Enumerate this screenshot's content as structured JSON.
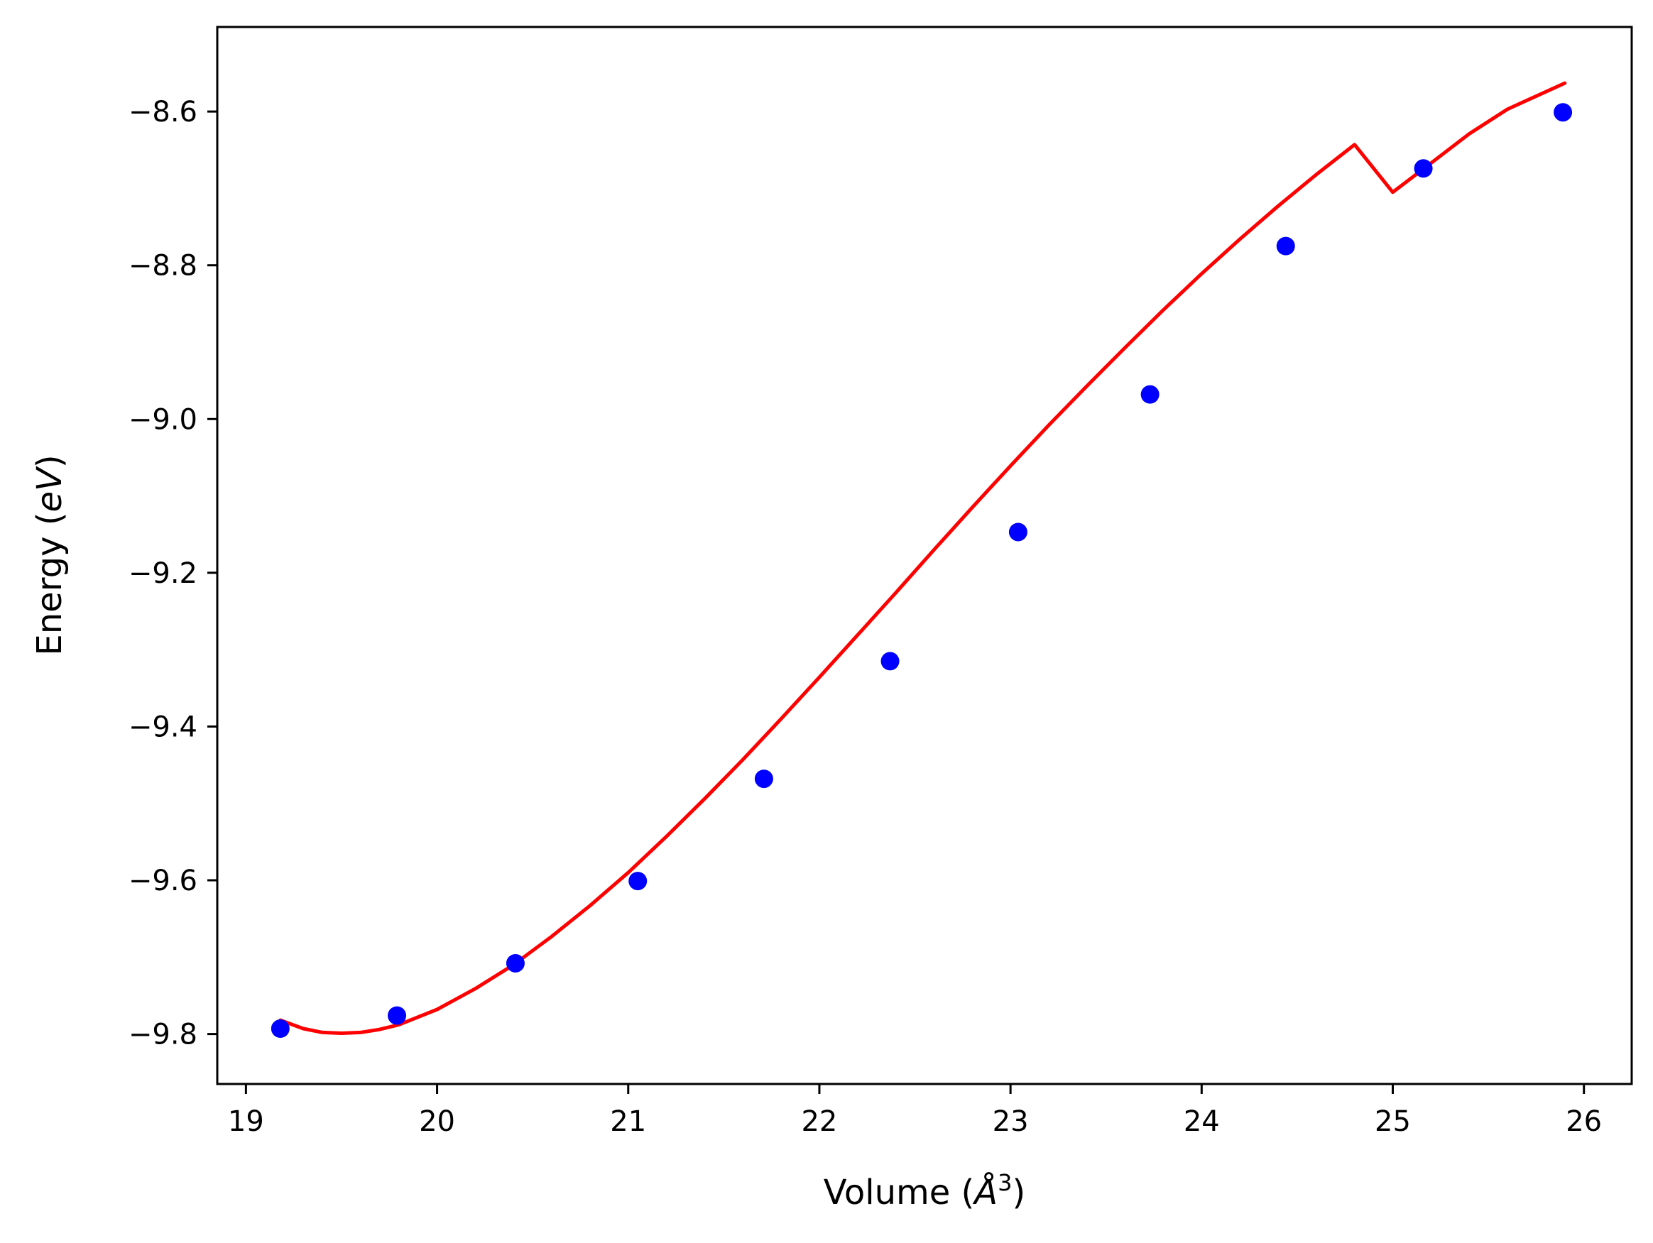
{
  "chart_data": {
    "type": "scatter",
    "title": "",
    "xlabel": "Volume (Å³)",
    "xlabel_parts": {
      "main": "Volume (",
      "italic": "Å",
      "sup": "3",
      "close": ")"
    },
    "ylabel": "Energy (eV)",
    "ylabel_parts": {
      "main": "Energy (",
      "italic": "eV",
      "close": ")"
    },
    "xlim": [
      18.85,
      26.25
    ],
    "ylim": [
      -9.865,
      -8.49
    ],
    "xticks": [
      19,
      20,
      21,
      22,
      23,
      24,
      25,
      26
    ],
    "xtick_labels": [
      "19",
      "20",
      "21",
      "22",
      "23",
      "24",
      "25",
      "26"
    ],
    "yticks": [
      -9.8,
      -9.6,
      -9.4,
      -9.2,
      -9.0,
      -8.8,
      -8.6
    ],
    "ytick_labels": [
      "−9.8",
      "−9.6",
      "−9.4",
      "−9.2",
      "−9.0",
      "−8.8",
      "−8.6"
    ],
    "grid": false,
    "series": [
      {
        "kind": "scatter",
        "color": "#0000ff",
        "x": [
          19.18,
          19.79,
          20.41,
          21.05,
          21.71,
          22.37,
          23.04,
          23.73,
          24.44,
          25.16,
          25.89
        ],
        "y": [
          -9.793,
          -9.776,
          -9.708,
          -9.601,
          -9.468,
          -9.315,
          -9.147,
          -8.968,
          -8.775,
          -8.674,
          -8.601
        ]
      },
      {
        "kind": "line",
        "color": "#ff0000",
        "x": [
          19.18,
          19.3,
          19.4,
          19.5,
          19.6,
          19.7,
          19.8,
          20.0,
          20.2,
          20.4,
          20.6,
          20.8,
          21.0,
          21.2,
          21.4,
          21.6,
          21.8,
          22.0,
          22.2,
          22.4,
          22.6,
          22.8,
          23.0,
          23.2,
          23.4,
          23.6,
          23.8,
          24.0,
          24.2,
          24.4,
          24.6,
          24.8,
          25.0,
          25.2,
          25.4,
          25.6,
          25.9
        ],
        "y": [
          -9.782,
          -9.793,
          -9.798,
          -9.799,
          -9.798,
          -9.794,
          -9.788,
          -9.768,
          -9.741,
          -9.71,
          -9.673,
          -9.633,
          -9.59,
          -9.543,
          -9.494,
          -9.443,
          -9.39,
          -9.336,
          -9.281,
          -9.226,
          -9.17,
          -9.115,
          -9.061,
          -9.008,
          -8.957,
          -8.907,
          -8.858,
          -8.811,
          -8.766,
          -8.723,
          -8.682,
          -8.643,
          -8.705,
          -8.667,
          -8.629,
          -8.597,
          -8.563
        ]
      }
    ]
  }
}
